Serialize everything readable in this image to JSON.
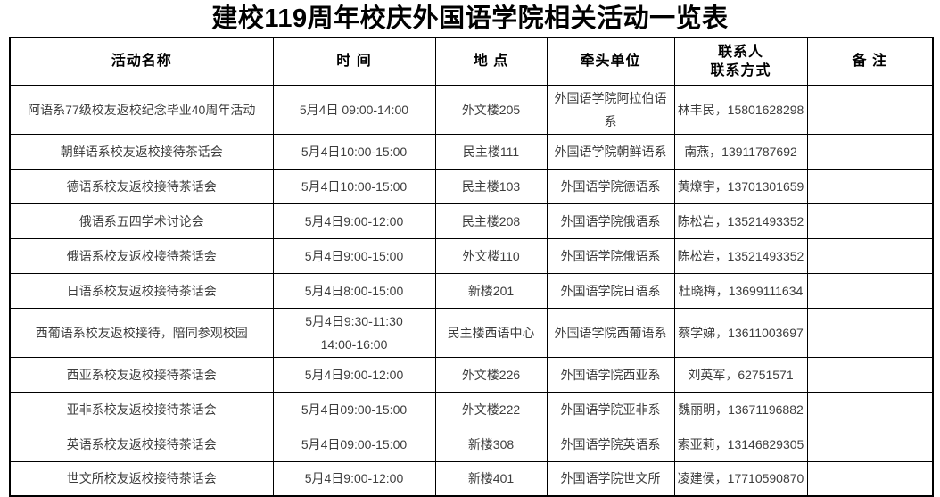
{
  "page_title": "建校119周年校庆外国语学院相关活动一览表",
  "table": {
    "headers": {
      "activity_name": "活动名称",
      "time": "时 间",
      "location": "地 点",
      "lead_unit": "牵头单位",
      "contact": "联系人\n联系方式",
      "remark": "备  注"
    },
    "col_keys": [
      "name",
      "time",
      "location",
      "unit",
      "contact",
      "remark"
    ],
    "col_names": [
      "activity-name-cell",
      "time-cell",
      "location-cell",
      "lead-unit-cell",
      "contact-cell",
      "remark-cell"
    ],
    "rows": [
      {
        "name": "阿语系77级校友返校纪念毕业40周年活动",
        "time": "5月4日 09:00-14:00",
        "location": "外文楼205",
        "unit": "外国语学院阿拉伯语系",
        "contact": "林丰民，15801628298",
        "remark": ""
      },
      {
        "name": "朝鲜语系校友返校接待茶话会",
        "time": "5月4日10:00-15:00",
        "location": "民主楼111",
        "unit": "外国语学院朝鲜语系",
        "contact": "南燕，13911787692",
        "remark": ""
      },
      {
        "name": "德语系校友返校接待茶话会",
        "time": "5月4日10:00-15:00",
        "location": "民主楼103",
        "unit": "外国语学院德语系",
        "contact": "黄燎宇，13701301659",
        "remark": ""
      },
      {
        "name": "俄语系五四学术讨论会",
        "time": "5月4日9:00-12:00",
        "location": "民主楼208",
        "unit": "外国语学院俄语系",
        "contact": "陈松岩，13521493352",
        "remark": ""
      },
      {
        "name": "俄语系校友返校接待茶话会",
        "time": "5月4日9:00-15:00",
        "location": "外文楼110",
        "unit": "外国语学院俄语系",
        "contact": "陈松岩，13521493352",
        "remark": ""
      },
      {
        "name": "日语系校友返校接待茶话会",
        "time": "5月4日8:00-15:00",
        "location": "新楼201",
        "unit": "外国语学院日语系",
        "contact": "杜晓梅，13699111634",
        "remark": ""
      },
      {
        "name": "西葡语系校友返校接待，陪同参观校园",
        "time": "5月4日9:30-11:30\n14:00-16:00",
        "location": "民主楼西语中心",
        "unit": "外国语学院西葡语系",
        "contact": "蔡学娣，13611003697",
        "remark": ""
      },
      {
        "name": "西亚系校友返校接待茶话会",
        "time": "5月4日9:00-12:00",
        "location": "外文楼226",
        "unit": "外国语学院西亚系",
        "contact": "刘英军，62751571",
        "remark": ""
      },
      {
        "name": "亚非系校友返校接待茶话会",
        "time": "5月4日09:00-15:00",
        "location": "外文楼222",
        "unit": "外国语学院亚非系",
        "contact": "魏丽明，13671196882",
        "remark": ""
      },
      {
        "name": "英语系校友返校接待茶话会",
        "time": "5月4日09:00-15:00",
        "location": "新楼308",
        "unit": "外国语学院英语系",
        "contact": "索亚莉，13146829305",
        "remark": ""
      },
      {
        "name": "世文所校友返校接待茶话会",
        "time": "5月4日9:00-12:00",
        "location": "新楼401",
        "unit": "外国语学院世文所",
        "contact": "凌建侯，17710590870",
        "remark": ""
      }
    ]
  }
}
